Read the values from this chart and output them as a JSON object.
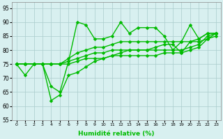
{
  "title": "",
  "xlabel": "Humidité relative (%)",
  "ylabel": "",
  "bg_color": "#d8f0f0",
  "grid_color": "#aacccc",
  "line_color": "#00bb00",
  "marker": "D",
  "markersize": 2.5,
  "linewidth": 1.0,
  "xlim": [
    -0.5,
    23.5
  ],
  "ylim": [
    55,
    97
  ],
  "yticks": [
    55,
    60,
    65,
    70,
    75,
    80,
    85,
    90,
    95
  ],
  "xticks": [
    0,
    1,
    2,
    3,
    4,
    5,
    6,
    7,
    8,
    9,
    10,
    11,
    12,
    13,
    14,
    15,
    16,
    17,
    18,
    19,
    20,
    21,
    22,
    23
  ],
  "series": [
    [
      75,
      71,
      75,
      75,
      67,
      65,
      76,
      90,
      89,
      84,
      84,
      85,
      90,
      86,
      88,
      88,
      88,
      85,
      80,
      83,
      89,
      84,
      86,
      86
    ],
    [
      75,
      75,
      75,
      75,
      75,
      75,
      77,
      79,
      80,
      81,
      81,
      82,
      83,
      83,
      83,
      83,
      83,
      83,
      83,
      83,
      83,
      84,
      86,
      86
    ],
    [
      75,
      75,
      75,
      75,
      75,
      75,
      76,
      77,
      78,
      79,
      79,
      80,
      80,
      80,
      80,
      80,
      80,
      80,
      80,
      80,
      81,
      82,
      85,
      86
    ],
    [
      75,
      75,
      75,
      75,
      75,
      75,
      75,
      76,
      77,
      77,
      77,
      78,
      78,
      78,
      78,
      78,
      78,
      79,
      79,
      79,
      80,
      81,
      84,
      85
    ],
    [
      75,
      75,
      75,
      75,
      62,
      64,
      71,
      72,
      74,
      76,
      77,
      78,
      79,
      80,
      80,
      80,
      81,
      82,
      82,
      79,
      83,
      83,
      84,
      86
    ]
  ]
}
